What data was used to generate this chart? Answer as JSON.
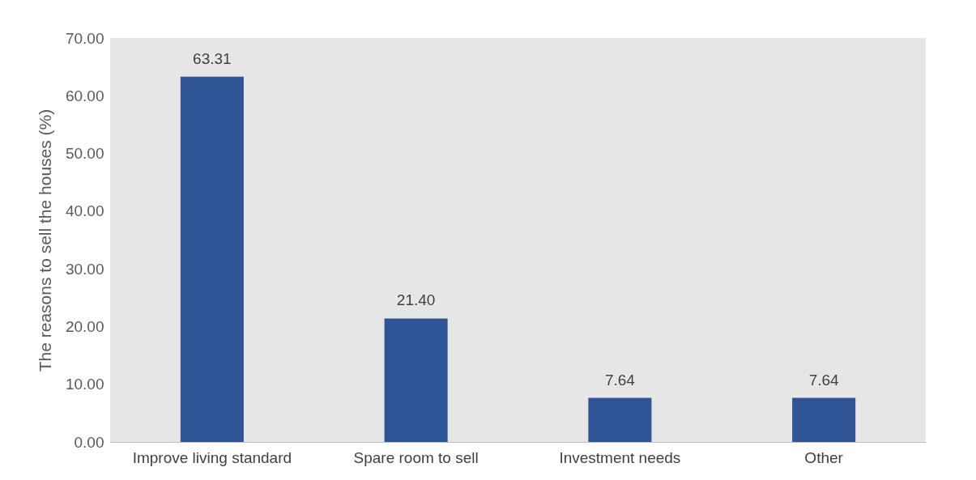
{
  "chart_data": {
    "type": "bar",
    "ylabel": "The  reasons to sell the houses (%)",
    "categories": [
      "Improve living standard",
      "Spare room to sell",
      "Investment needs",
      "Other"
    ],
    "values": [
      63.31,
      21.4,
      7.64,
      7.64
    ],
    "value_labels": [
      "63.31",
      "21.40",
      "7.64",
      "7.64"
    ],
    "color": "#2f5597",
    "ylim": [
      0,
      70
    ],
    "yticks": [
      {
        "value": 0,
        "label": "0.00"
      },
      {
        "value": 10,
        "label": "10.00"
      },
      {
        "value": 20,
        "label": "20.00"
      },
      {
        "value": 30,
        "label": "30.00"
      },
      {
        "value": 40,
        "label": "40.00"
      },
      {
        "value": 50,
        "label": "50.00"
      },
      {
        "value": 60,
        "label": "60.00"
      },
      {
        "value": 70,
        "label": "70.00"
      }
    ],
    "grid": false
  }
}
